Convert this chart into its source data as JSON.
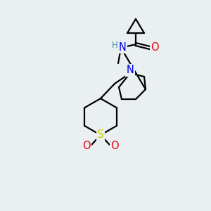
{
  "bg_color": "#eaeff1",
  "bond_color": "#000000",
  "atom_colors": {
    "N": "#0000ee",
    "O": "#ee0000",
    "S": "#cccc00",
    "H": "#4488aa",
    "C": "#000000"
  },
  "fig_size": [
    3.0,
    3.0
  ],
  "dpi": 100
}
